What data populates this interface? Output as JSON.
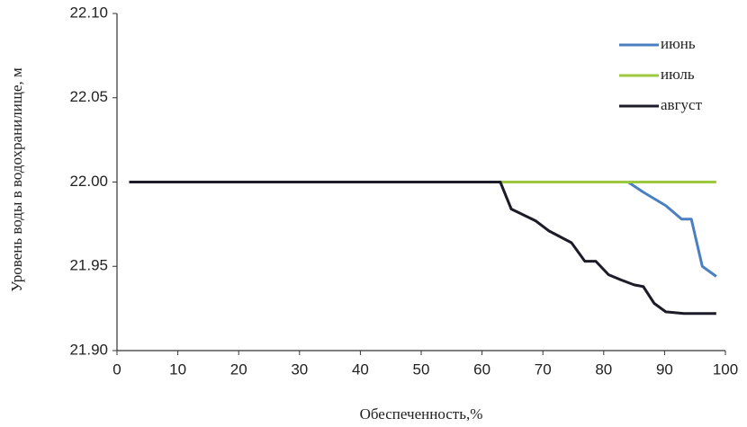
{
  "chart_data": {
    "type": "line",
    "xlabel": "Обеспеченность,%",
    "ylabel": "Уровень воды в водохранилище, м",
    "xlim": [
      0,
      100
    ],
    "xticks": [
      0,
      10,
      20,
      30,
      40,
      50,
      60,
      70,
      80,
      90,
      100
    ],
    "ylim": [
      21.9,
      22.1
    ],
    "yticks": [
      {
        "value": 21.9,
        "label": "21.90"
      },
      21.95,
      {
        "value": 22,
        "label": "22.00"
      },
      22.05,
      {
        "value": 22.1,
        "label": "22.10"
      }
    ],
    "grid": false,
    "legend": "upper right",
    "series": [
      {
        "name": "июнь",
        "color": "#4a7fc1",
        "x": [
          2,
          84,
          86.5,
          90.2,
          92.8,
          94.4,
          96.2,
          98.5
        ],
        "values": [
          22,
          22,
          21.994,
          21.986,
          21.978,
          21.978,
          21.95,
          21.944
        ]
      },
      {
        "name": "июль",
        "color": "#9cc83c",
        "x": [
          2,
          98.5
        ],
        "values": [
          22,
          22
        ]
      },
      {
        "name": "август",
        "color": "#1c1c28",
        "x": [
          2,
          63,
          64.8,
          68.8,
          71,
          74.7,
          76.9,
          78.7,
          80.8,
          82.8,
          85,
          86.5,
          88.3,
          90.2,
          93.2,
          98.5
        ],
        "values": [
          22,
          22,
          21.984,
          21.977,
          21.971,
          21.964,
          21.953,
          21.953,
          21.945,
          21.942,
          21.939,
          21.938,
          21.928,
          21.923,
          21.922,
          21.922
        ]
      }
    ]
  }
}
